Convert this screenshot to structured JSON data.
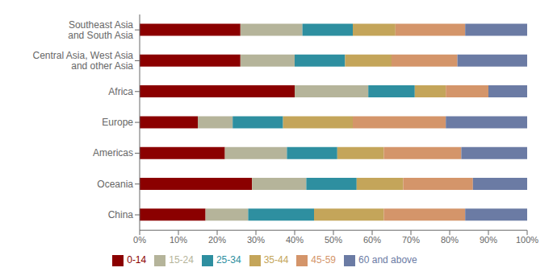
{
  "chart_data": {
    "type": "bar",
    "orientation": "horizontal",
    "stacked": true,
    "categories": [
      "Southeast Asia\nand South Asia",
      "Central Asia, West Asia\nand other Asia",
      "Africa",
      "Europe",
      "Americas",
      "Oceania",
      "China"
    ],
    "series": [
      {
        "name": "0-14",
        "color": "#8B0000",
        "values": [
          26,
          26,
          40,
          15,
          22,
          29,
          17
        ]
      },
      {
        "name": "15-24",
        "color": "#B5B49A",
        "values": [
          16,
          14,
          19,
          9,
          16,
          14,
          11
        ]
      },
      {
        "name": "25-34",
        "color": "#2E8FA0",
        "values": [
          13,
          13,
          12,
          13,
          13,
          13,
          17
        ]
      },
      {
        "name": "35-44",
        "color": "#C4A55A",
        "values": [
          11,
          12,
          8,
          18,
          12,
          12,
          18
        ]
      },
      {
        "name": "45-59",
        "color": "#D4956A",
        "values": [
          18,
          17,
          11,
          24,
          20,
          18,
          21
        ]
      },
      {
        "name": "60 and above",
        "color": "#6B7BA4",
        "values": [
          16,
          18,
          10,
          21,
          17,
          14,
          16
        ]
      }
    ],
    "xlim": [
      0,
      100
    ],
    "xticks": [
      {
        "value": 0,
        "label": "0%"
      },
      {
        "value": 10,
        "label": "10%"
      },
      {
        "value": 20,
        "label": "20%"
      },
      {
        "value": 30,
        "label": "30%"
      },
      {
        "value": 40,
        "label": "40%"
      },
      {
        "value": 50,
        "label": "50%"
      },
      {
        "value": 60,
        "label": "60%"
      },
      {
        "value": 70,
        "label": "70%"
      },
      {
        "value": 80,
        "label": "80%"
      },
      {
        "value": 90,
        "label": "90%"
      },
      {
        "value": 100,
        "label": "100%"
      }
    ],
    "grid": false,
    "legend": "bottom"
  }
}
